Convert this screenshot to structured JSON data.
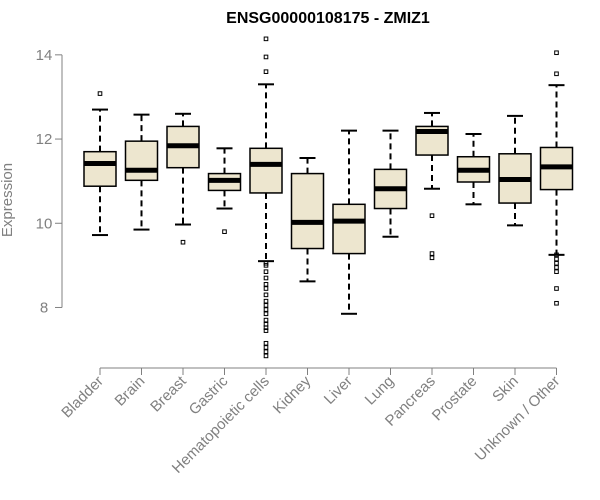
{
  "chart_data": {
    "type": "boxplot",
    "title": "ENSG00000108175 - ZMIZ1",
    "xlabel": "",
    "ylabel": "Expression",
    "ylim": [
      6.8,
      14.4
    ],
    "yticks": [
      8,
      10,
      12,
      14
    ],
    "grid": false,
    "box_color": "#ede6cf",
    "line_color": "#000000",
    "axis_color": "#808080",
    "categories": [
      "Bladder",
      "Brain",
      "Breast",
      "Gastric",
      "Hematopoietic cells",
      "Kidney",
      "Liver",
      "Lung",
      "Pancreas",
      "Prostate",
      "Skin",
      "Unknown / Other"
    ],
    "boxes": [
      {
        "name": "Bladder",
        "whisker_low": 9.72,
        "q1": 10.88,
        "median": 11.42,
        "q3": 11.7,
        "whisker_high": 12.7,
        "outliers": [
          13.08
        ]
      },
      {
        "name": "Brain",
        "whisker_low": 9.85,
        "q1": 11.02,
        "median": 11.26,
        "q3": 11.95,
        "whisker_high": 12.58,
        "outliers": []
      },
      {
        "name": "Breast",
        "whisker_low": 9.97,
        "q1": 11.32,
        "median": 11.84,
        "q3": 12.3,
        "whisker_high": 12.6,
        "outliers": [
          9.55
        ]
      },
      {
        "name": "Gastric",
        "whisker_low": 10.35,
        "q1": 10.78,
        "median": 11.02,
        "q3": 11.18,
        "whisker_high": 11.78,
        "outliers": [
          9.8
        ]
      },
      {
        "name": "Hematopoietic cells",
        "whisker_low": 9.1,
        "q1": 10.72,
        "median": 11.4,
        "q3": 11.78,
        "whisker_high": 13.3,
        "outliers": [
          14.38,
          13.95,
          13.6,
          9.05,
          9.0,
          8.85,
          8.7,
          8.55,
          8.45,
          8.3,
          8.15,
          8.05,
          7.95,
          7.85,
          7.7,
          7.6,
          7.52,
          7.45,
          7.15,
          7.05,
          6.95,
          6.85
        ]
      },
      {
        "name": "Kidney",
        "whisker_low": 8.62,
        "q1": 9.4,
        "median": 10.02,
        "q3": 11.18,
        "whisker_high": 11.55,
        "outliers": []
      },
      {
        "name": "Liver",
        "whisker_low": 7.85,
        "q1": 9.28,
        "median": 10.05,
        "q3": 10.45,
        "whisker_high": 12.2,
        "outliers": []
      },
      {
        "name": "Lung",
        "whisker_low": 9.68,
        "q1": 10.35,
        "median": 10.82,
        "q3": 11.28,
        "whisker_high": 12.2,
        "outliers": []
      },
      {
        "name": "Pancreas",
        "whisker_low": 10.82,
        "q1": 11.62,
        "median": 12.18,
        "q3": 12.3,
        "whisker_high": 12.62,
        "outliers": [
          10.18,
          9.28,
          9.18
        ]
      },
      {
        "name": "Prostate",
        "whisker_low": 10.45,
        "q1": 10.98,
        "median": 11.26,
        "q3": 11.58,
        "whisker_high": 12.12,
        "outliers": []
      },
      {
        "name": "Skin",
        "whisker_low": 9.95,
        "q1": 10.48,
        "median": 11.04,
        "q3": 11.65,
        "whisker_high": 12.55,
        "outliers": []
      },
      {
        "name": "Unknown / Other",
        "whisker_low": 9.25,
        "q1": 10.8,
        "median": 11.34,
        "q3": 11.8,
        "whisker_high": 13.28,
        "outliers": [
          14.05,
          13.55,
          9.25,
          9.15,
          9.05,
          8.95,
          8.85,
          8.45,
          8.1
        ]
      }
    ]
  }
}
